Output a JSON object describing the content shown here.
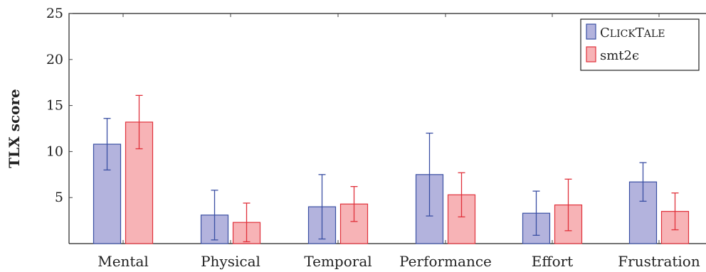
{
  "chart_data": {
    "type": "bar",
    "title": "",
    "xlabel": "",
    "ylabel": "TLX score",
    "categories": [
      "Mental",
      "Physical",
      "Temporal",
      "Performance",
      "Effort",
      "Frustration"
    ],
    "ylim": [
      0,
      25
    ],
    "yticks": [
      5,
      10,
      15,
      20,
      25
    ],
    "series": [
      {
        "name": "CLICKTALE",
        "legend_main": "C",
        "legend_small": "LICK",
        "legend_main2": "T",
        "legend_small2": "ALE",
        "fill": "#b3b3dd",
        "stroke": "#3a4fa3",
        "values": [
          10.8,
          3.1,
          4.0,
          7.5,
          3.3,
          6.7
        ],
        "error": [
          2.8,
          2.7,
          3.5,
          4.5,
          2.4,
          2.1
        ]
      },
      {
        "name": "SMT2ε",
        "legend_label": "smt2ϵ",
        "fill": "#f7b3b6",
        "stroke": "#e0313b",
        "values": [
          13.2,
          2.3,
          4.3,
          5.3,
          4.2,
          3.5
        ],
        "error": [
          2.9,
          2.1,
          1.9,
          2.4,
          2.8,
          2.0
        ]
      }
    ],
    "grid": false,
    "legend_position": "top-right"
  }
}
